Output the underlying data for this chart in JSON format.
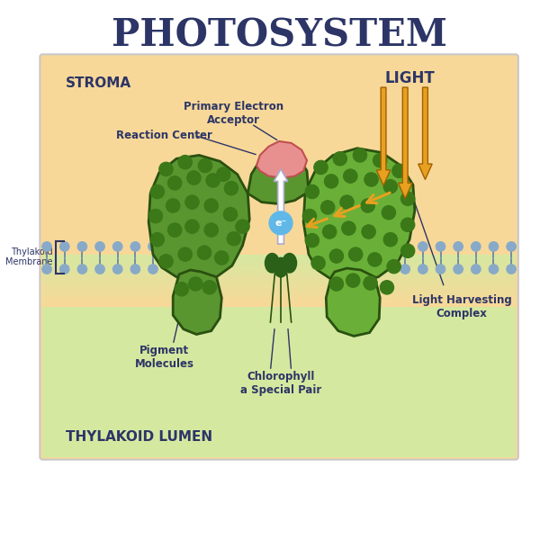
{
  "title": "PHOTOSYSTEM",
  "title_fontsize": 30,
  "title_fontweight": "bold",
  "title_color": "#2c3566",
  "bg_color": "#ffffff",
  "stroma_label": "STROMA",
  "lumen_label": "THYLAKOID LUMEN",
  "membrane_label": "Thylakoid\nMembrane",
  "labels": {
    "primary_electron": "Primary Electron\nAcceptor",
    "reaction_center": "Reaction Center",
    "light": "LIGHT",
    "light_harvesting": "Light Harvesting\nComplex",
    "pigment": "Pigment\nMolecules",
    "chlorophyll": "Chlorophyll\na Special Pair"
  },
  "stroma_color": "#f8d898",
  "lumen_color": "#d5e8a0",
  "border_color": "#c8c8c8",
  "membrane_ball_color": "#88aac8",
  "membrane_line_color": "#6080a0",
  "membrane_outline_color": "#405878",
  "protein_color": "#5a9630",
  "protein_outline": "#2a5010",
  "protein_light_color": "#6ab038",
  "dot_color": "#3a7818",
  "dot_outline": "#1a4808",
  "reaction_center_color": "#e89090",
  "reaction_center_outline": "#c05050",
  "electron_color": "#60b8e8",
  "electron_outline": "#1850a0",
  "arrow_orange": "#e8a020",
  "arrow_orange_dark": "#a06000",
  "arrow_white": "#ffffff",
  "annotation_color": "#2c3566",
  "ann_fontsize": 8,
  "bracket_color": "#2c3566"
}
